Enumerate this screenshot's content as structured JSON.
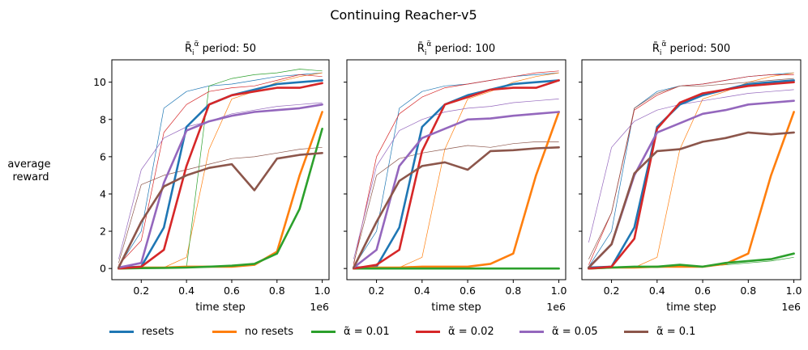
{
  "chart_data": {
    "type": "line",
    "title": "Continuing Reacher-v5",
    "ylabel": "average\nreward",
    "xlabel": "time step",
    "x_offset_label": "1e6",
    "xlim": [
      0.07,
      1.03
    ],
    "ylim": [
      -0.6,
      11.2
    ],
    "xticks": [
      0.2,
      0.4,
      0.6,
      0.8,
      1.0
    ],
    "xtick_labels": [
      "0.2",
      "0.4",
      "0.6",
      "0.8",
      "1.0"
    ],
    "yticks": [
      0,
      2,
      4,
      6,
      8,
      10
    ],
    "ytick_labels": [
      "0",
      "2",
      "4",
      "6",
      "8",
      "10"
    ],
    "x": [
      0.1,
      0.2,
      0.3,
      0.4,
      0.5,
      0.6,
      0.7,
      0.8,
      0.9,
      1.0
    ],
    "series_styles": [
      {
        "name": "resets",
        "color": "#1f77b4"
      },
      {
        "name": "no resets",
        "color": "#ff7f0e"
      },
      {
        "name": "α̃ = 0.01",
        "color": "#2ca02c"
      },
      {
        "name": "α̃ = 0.02",
        "color": "#d62728"
      },
      {
        "name": "α̃ = 0.05",
        "color": "#9467bd"
      },
      {
        "name": "α̃ = 0.1",
        "color": "#8c564b"
      }
    ],
    "legend": [
      "resets",
      "no resets",
      "α̃ = 0.01",
      "α̃ = 0.02",
      "α̃ = 0.05",
      "α̃ = 0.1"
    ],
    "panels": [
      {
        "title_prefix": "R̄",
        "title_sub": "i",
        "title_sup": "α̃",
        "title_suffix": " period: 50",
        "series": [
          {
            "name": "resets",
            "values": [
              0.05,
              0.1,
              2.2,
              7.6,
              8.8,
              9.3,
              9.6,
              9.9,
              10.0,
              10.1
            ],
            "thin": [
              0.1,
              2.0,
              8.6,
              9.5,
              9.8,
              9.9,
              10.1,
              10.3,
              10.4,
              10.5
            ]
          },
          {
            "name": "no resets",
            "values": [
              0.0,
              0.05,
              0.05,
              0.1,
              0.1,
              0.1,
              0.2,
              0.9,
              5.0,
              8.4
            ],
            "thin": [
              0.0,
              0.05,
              0.05,
              0.6,
              6.4,
              9.1,
              9.5,
              10.0,
              10.3,
              10.5
            ]
          },
          {
            "name": "α̃ = 0.01",
            "values": [
              0.0,
              0.02,
              0.03,
              0.05,
              0.1,
              0.15,
              0.25,
              0.8,
              3.2,
              7.5
            ],
            "thin": [
              0.0,
              0.0,
              0.0,
              0.05,
              9.8,
              10.2,
              10.4,
              10.5,
              10.7,
              10.6
            ]
          },
          {
            "name": "α̃ = 0.02",
            "values": [
              0.0,
              0.1,
              1.0,
              5.5,
              8.8,
              9.3,
              9.5,
              9.7,
              9.7,
              9.95
            ],
            "thin": [
              0.2,
              1.5,
              7.3,
              8.8,
              9.5,
              9.7,
              9.8,
              10.1,
              10.4,
              10.3
            ]
          },
          {
            "name": "α̃ = 0.05",
            "values": [
              0.05,
              0.3,
              4.6,
              7.4,
              7.9,
              8.2,
              8.4,
              8.5,
              8.6,
              8.8
            ],
            "thin": [
              0.5,
              5.3,
              7.0,
              7.6,
              7.9,
              8.3,
              8.5,
              8.7,
              8.8,
              8.9
            ]
          },
          {
            "name": "α̃ = 0.1",
            "values": [
              0.05,
              2.5,
              4.4,
              5.0,
              5.4,
              5.6,
              4.2,
              5.9,
              6.1,
              6.2
            ],
            "thin": [
              0.3,
              4.5,
              5.0,
              5.3,
              5.6,
              5.9,
              6.0,
              6.2,
              6.4,
              6.5
            ]
          }
        ]
      },
      {
        "title_prefix": "R̄",
        "title_sub": "i",
        "title_sup": "α̃",
        "title_suffix": " period: 100",
        "series": [
          {
            "name": "resets",
            "values": [
              0.05,
              0.1,
              2.2,
              7.6,
              8.8,
              9.3,
              9.6,
              9.9,
              10.0,
              10.1
            ],
            "thin": [
              0.1,
              2.0,
              8.6,
              9.5,
              9.8,
              9.9,
              10.1,
              10.3,
              10.4,
              10.5
            ]
          },
          {
            "name": "no resets",
            "values": [
              0.0,
              0.05,
              0.05,
              0.1,
              0.1,
              0.1,
              0.25,
              0.8,
              5.0,
              8.4
            ],
            "thin": [
              0.0,
              0.05,
              0.05,
              0.6,
              6.4,
              9.1,
              9.5,
              10.0,
              10.3,
              10.5
            ]
          },
          {
            "name": "α̃ = 0.01",
            "values": [
              0.0,
              0.0,
              0.0,
              0.0,
              0.0,
              0.0,
              0.0,
              0.0,
              0.0,
              0.0
            ],
            "thin": [
              0.0,
              0.0,
              0.0,
              0.0,
              0.0,
              0.0,
              0.0,
              0.0,
              0.0,
              0.0
            ]
          },
          {
            "name": "α̃ = 0.02",
            "values": [
              0.0,
              0.2,
              1.0,
              6.3,
              8.8,
              9.2,
              9.6,
              9.7,
              9.7,
              10.1
            ],
            "thin": [
              0.2,
              6.0,
              8.3,
              9.2,
              9.7,
              9.9,
              10.1,
              10.3,
              10.5,
              10.6
            ]
          },
          {
            "name": "α̃ = 0.05",
            "values": [
              0.05,
              1.0,
              5.5,
              7.0,
              7.5,
              8.0,
              8.05,
              8.2,
              8.3,
              8.4
            ],
            "thin": [
              0.5,
              5.5,
              7.4,
              8.0,
              8.4,
              8.6,
              8.7,
              8.9,
              9.0,
              9.1
            ]
          },
          {
            "name": "α̃ = 0.1",
            "values": [
              0.05,
              2.5,
              4.7,
              5.5,
              5.7,
              5.3,
              6.3,
              6.35,
              6.45,
              6.5
            ],
            "thin": [
              0.3,
              5.0,
              5.9,
              6.2,
              6.4,
              6.6,
              6.5,
              6.7,
              6.8,
              6.8
            ]
          }
        ]
      },
      {
        "title_prefix": "R̄",
        "title_sub": "i",
        "title_sup": "α̃",
        "title_suffix": " period: 500",
        "series": [
          {
            "name": "resets",
            "values": [
              0.05,
              0.1,
              2.2,
              7.6,
              8.8,
              9.3,
              9.6,
              9.9,
              10.0,
              10.1
            ],
            "thin": [
              0.1,
              2.0,
              8.6,
              9.5,
              9.8,
              9.9,
              10.1,
              10.3,
              10.4,
              10.5
            ]
          },
          {
            "name": "no resets",
            "values": [
              0.0,
              0.05,
              0.05,
              0.1,
              0.1,
              0.1,
              0.25,
              0.8,
              5.0,
              8.4
            ],
            "thin": [
              0.0,
              0.05,
              0.05,
              0.6,
              6.4,
              9.1,
              9.5,
              10.0,
              10.3,
              10.5
            ]
          },
          {
            "name": "α̃ = 0.01",
            "values": [
              0.0,
              0.05,
              0.1,
              0.1,
              0.2,
              0.1,
              0.3,
              0.4,
              0.5,
              0.8
            ],
            "thin": [
              0.0,
              0.02,
              0.05,
              0.05,
              0.1,
              0.1,
              0.2,
              0.3,
              0.4,
              0.6
            ]
          },
          {
            "name": "α̃ = 0.02",
            "values": [
              0.0,
              0.1,
              1.6,
              7.5,
              8.9,
              9.4,
              9.6,
              9.8,
              9.9,
              10.0
            ],
            "thin": [
              0.2,
              3.0,
              8.5,
              9.3,
              9.8,
              9.9,
              10.1,
              10.3,
              10.4,
              10.4
            ]
          },
          {
            "name": "α̃ = 0.05",
            "values": [
              0.05,
              1.3,
              5.0,
              7.3,
              7.8,
              8.3,
              8.5,
              8.8,
              8.9,
              9.0
            ],
            "thin": [
              1.4,
              6.5,
              7.9,
              8.5,
              8.8,
              9.0,
              9.2,
              9.4,
              9.5,
              9.6
            ]
          },
          {
            "name": "α̃ = 0.1",
            "values": [
              0.05,
              1.3,
              5.1,
              6.3,
              6.4,
              6.8,
              7.0,
              7.3,
              7.2,
              7.3
            ],
            "thin": [
              0.5,
              3.0,
              8.6,
              9.4,
              9.8,
              9.8,
              9.9,
              10.0,
              10.1,
              10.2
            ]
          }
        ]
      }
    ]
  }
}
